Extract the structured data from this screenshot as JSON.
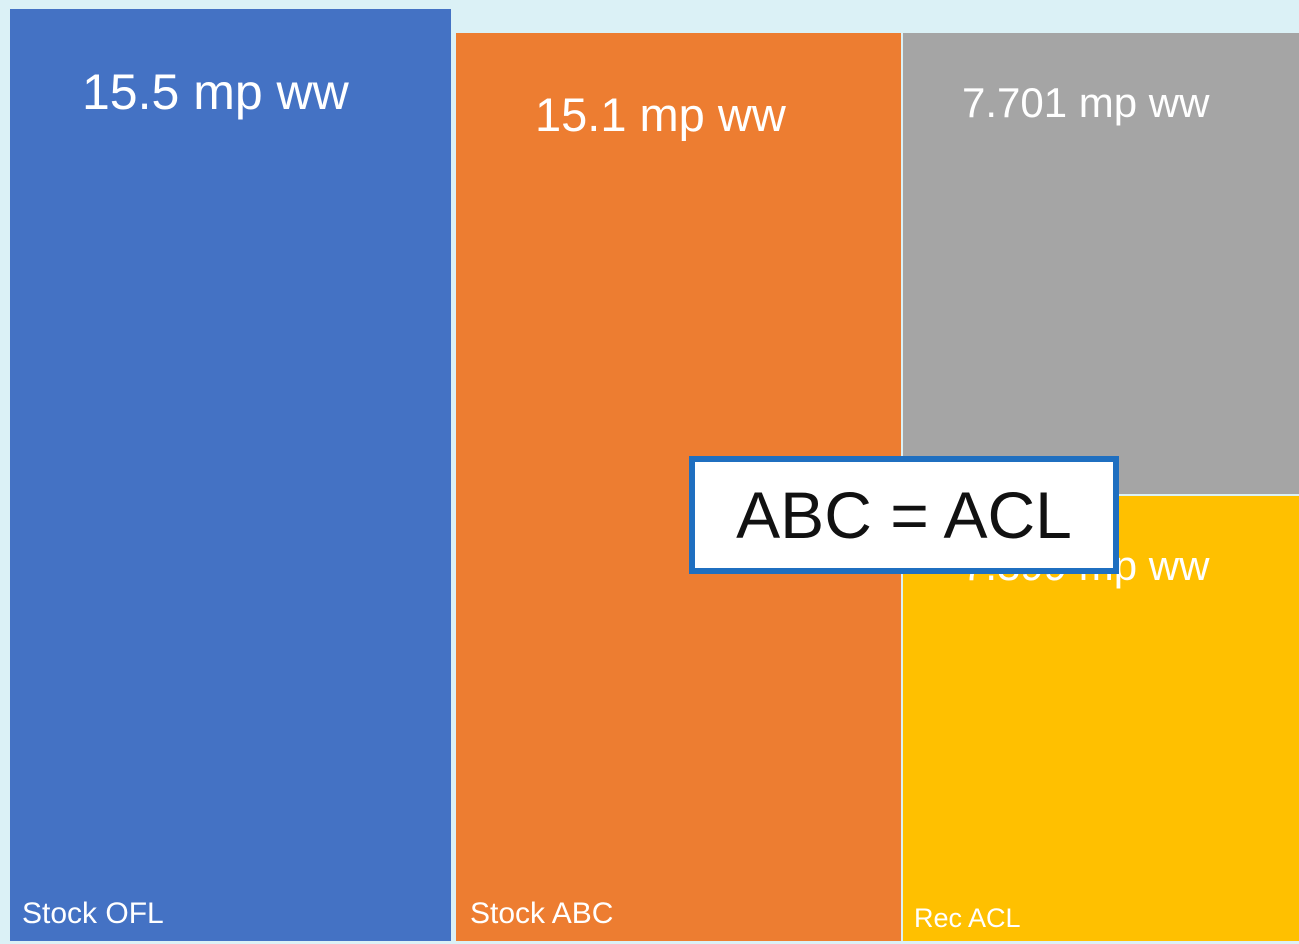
{
  "chart_data": {
    "type": "bar",
    "title": "",
    "xlabel": "",
    "ylabel": "",
    "categories": [
      "Stock OFL",
      "Stock ABC",
      "Rec ACL"
    ],
    "series": [
      {
        "values": [
          15.5,
          15.1,
          7.399
        ],
        "labels": [
          "15.5 mp ww",
          "15.1 mp ww",
          "7.399 mp ww"
        ],
        "colors": [
          "#4472c4",
          "#ed7d31",
          "#ffc000"
        ]
      },
      {
        "values": [
          0,
          0,
          7.701
        ],
        "labels": [
          "",
          "",
          "7.701 mp ww"
        ],
        "colors": [
          "#4472c4",
          "#ed7d31",
          "#a5a5a5"
        ]
      }
    ],
    "ylim": [
      0,
      15.5
    ],
    "grid": false,
    "legend": "none"
  },
  "callout": {
    "text": "ABC = ACL"
  }
}
